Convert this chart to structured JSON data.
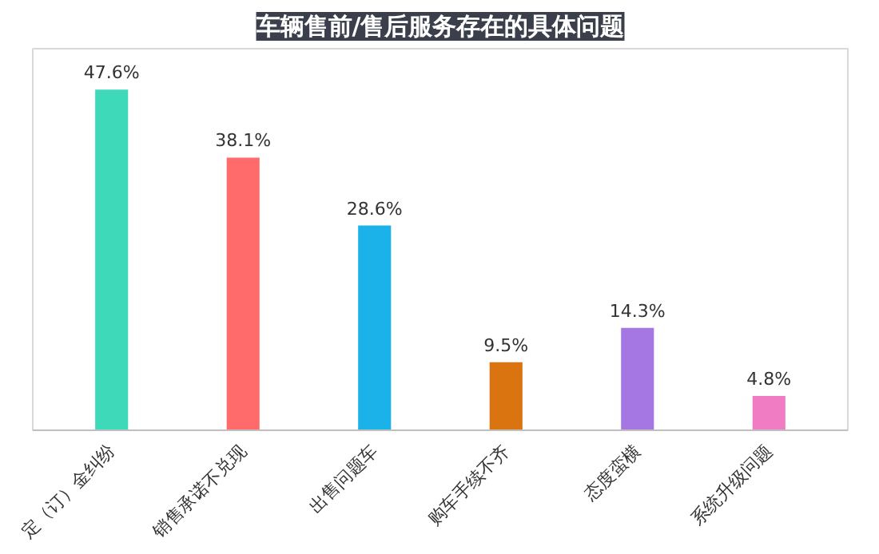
{
  "chart_data": {
    "type": "bar",
    "title": "车辆售前/售后服务存在的具体问题",
    "categories": [
      "定（订）金纠纷",
      "销售承诺不兑现",
      "出售问题车",
      "购车手续不齐",
      "态度蛮横",
      "系统升级问题"
    ],
    "values": [
      47.6,
      38.1,
      28.6,
      9.5,
      14.3,
      4.8
    ],
    "colors": [
      "#3dd9b9",
      "#ff6b6b",
      "#1ab2e8",
      "#d97410",
      "#a477e3",
      "#f07dc4"
    ],
    "value_labels": [
      "47.6%",
      "38.1%",
      "28.6%",
      "9.5%",
      "14.3%",
      "4.8%"
    ],
    "grid": false
  }
}
